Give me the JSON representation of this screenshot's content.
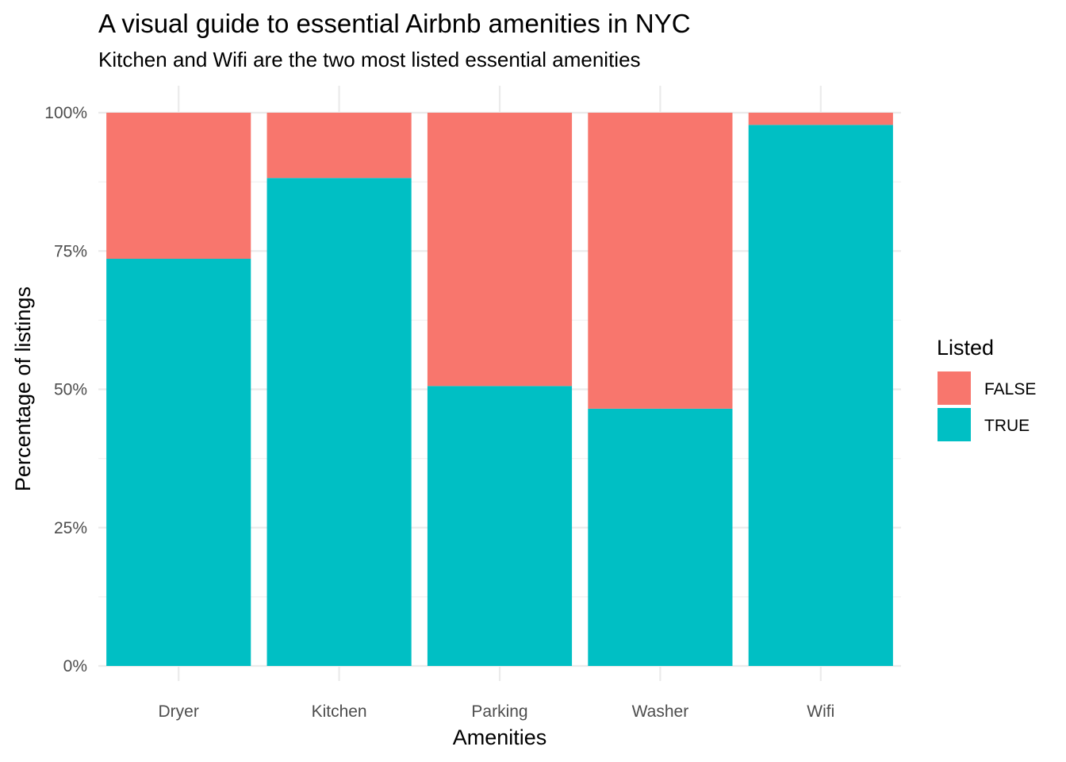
{
  "chart_data": {
    "type": "bar",
    "stacked": "percent",
    "title": "A visual guide to essential Airbnb amenities in NYC",
    "subtitle": "Kitchen and Wifi are the two most listed essential amenities",
    "xlabel": "Amenities",
    "ylabel": "Percentage of listings",
    "ylim": [
      0,
      1
    ],
    "y_ticks": [
      "0%",
      "25%",
      "50%",
      "75%",
      "100%"
    ],
    "categories": [
      "Dryer",
      "Kitchen",
      "Parking",
      "Washer",
      "Wifi"
    ],
    "series": [
      {
        "name": "FALSE",
        "color": "#F8766D",
        "values": [
          0.264,
          0.118,
          0.494,
          0.535,
          0.022
        ]
      },
      {
        "name": "TRUE",
        "color": "#00BFC4",
        "values": [
          0.736,
          0.882,
          0.506,
          0.465,
          0.978
        ]
      }
    ],
    "legend": {
      "title": "Listed",
      "position": "right"
    },
    "grid": true
  }
}
